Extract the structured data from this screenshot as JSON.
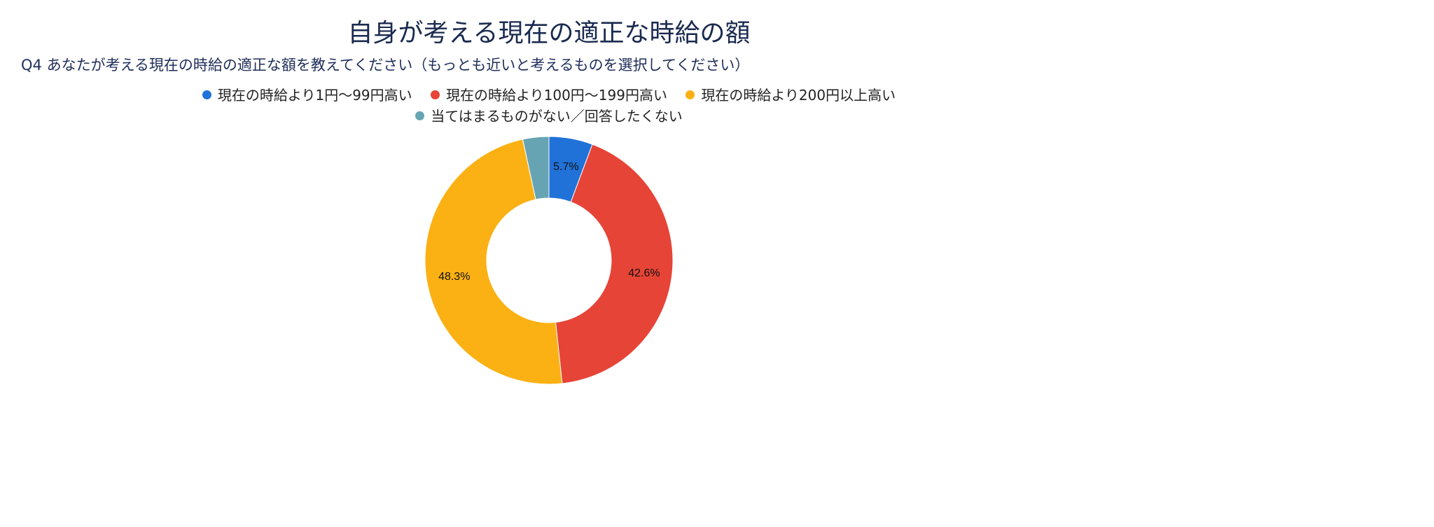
{
  "chart_data": {
    "type": "pie",
    "donut": true,
    "title": "自身が考える現在の適正な時給の額",
    "subtitle": "Q4 あなたが考える現在の時給の適正な額を教えてください（もっとも近いと考えるものを選択してください）",
    "legend_position": "top",
    "slices": [
      {
        "label": "現在の時給より1円〜99円高い",
        "value": 5.7,
        "value_label": "5.7%",
        "color": "#2072d8"
      },
      {
        "label": "現在の時給より100円〜199円高い",
        "value": 42.6,
        "value_label": "42.6%",
        "color": "#e64437"
      },
      {
        "label": "現在の時給より200円以上高い",
        "value": 48.3,
        "value_label": "48.3%",
        "color": "#fbb114"
      },
      {
        "label": "当てはまるものがない／回答したくない",
        "value": 3.4,
        "value_label": "",
        "color": "#67a4b3"
      }
    ]
  }
}
